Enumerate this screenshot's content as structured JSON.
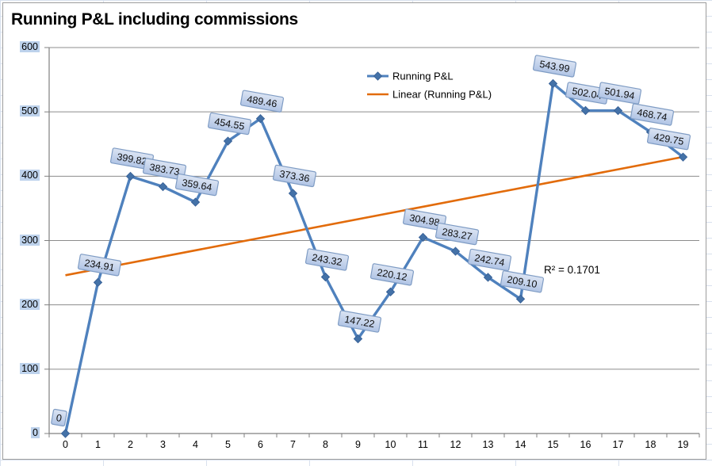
{
  "chart_data": {
    "type": "line",
    "title": "Running P&L including commissions",
    "x_labels": [
      "0",
      "1",
      "2",
      "3",
      "4",
      "5",
      "6",
      "7",
      "8",
      "9",
      "10",
      "11",
      "12",
      "13",
      "14",
      "15",
      "16",
      "17",
      "18",
      "19"
    ],
    "series": [
      {
        "name": "Running P&L",
        "color": "#4F81BD",
        "values": [
          0,
          234.91,
          399.82,
          383.73,
          359.64,
          454.55,
          489.46,
          373.36,
          243.32,
          147.22,
          220.12,
          304.98,
          283.27,
          242.74,
          209.1,
          543.99,
          502.04,
          501.94,
          468.74,
          429.75
        ],
        "labels": [
          "0",
          "234.91",
          "399.82",
          "383.73",
          "359.64",
          "454.55",
          "489.46",
          "373.36",
          "243.32",
          "147.22",
          "220.12",
          "304.98",
          "283.27",
          "242.74",
          "209.10",
          "543.99",
          "502.04",
          "501.94",
          "468.74",
          "429.75"
        ]
      }
    ],
    "trendline": {
      "name": "Linear (Running P&L)",
      "color": "#E26B0A",
      "start_value": 246,
      "end_value": 430,
      "annotation": "R² = 0.1701"
    },
    "legend": {
      "position": "top-center",
      "entries": [
        "Running P&L",
        "Linear (Running P&L)"
      ]
    },
    "y_axis": {
      "min": 0,
      "max": 600,
      "tick_step": 100,
      "tick_labels": [
        "0",
        "100",
        "200",
        "300",
        "400",
        "500",
        "600"
      ],
      "highlight_color": "#bdd2ec"
    },
    "grid": {
      "horizontal": true,
      "vertical": false
    },
    "ylim": [
      0,
      600
    ]
  },
  "colors": {
    "axis": "#808080",
    "gridline": "#8c8c8c",
    "marker_fill": "#4472a8",
    "marker_border": "#3a6399",
    "label_fill_top": "#dbe4f3",
    "label_fill_bottom": "#b0c4e5",
    "label_border": "#7f9cc4",
    "spreadsheet_grid": "#d9e1ee",
    "chart_border": "#9c9c9c"
  }
}
